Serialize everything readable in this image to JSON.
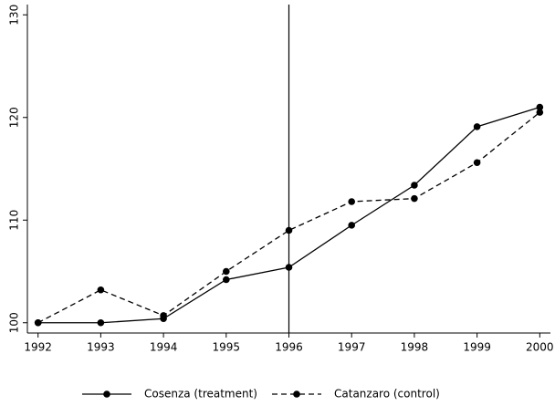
{
  "chart_data": {
    "type": "line",
    "x": [
      1992,
      1993,
      1994,
      1995,
      1996,
      1997,
      1998,
      1999,
      2000
    ],
    "series": [
      {
        "name": "Cosenza (treatment)",
        "color": "#000000",
        "dash": "solid",
        "values": [
          100,
          100,
          100.4,
          104.2,
          105.4,
          109.5,
          113.4,
          119.1,
          121
        ]
      },
      {
        "name": "Catanzaro (control)",
        "color": "#000000",
        "dash": "dashed",
        "values": [
          100,
          103.2,
          100.7,
          105,
          109,
          111.8,
          112.1,
          115.6,
          120.5
        ]
      }
    ],
    "xlim": [
      1991.83,
      2000.17
    ],
    "xticks": [
      1992,
      1993,
      1994,
      1995,
      1996,
      1997,
      1998,
      1999,
      2000
    ],
    "ylim": [
      99,
      131
    ],
    "yticks": [
      100,
      110,
      120,
      130
    ],
    "vline": 1996,
    "grid": false,
    "legend": "bottom"
  }
}
